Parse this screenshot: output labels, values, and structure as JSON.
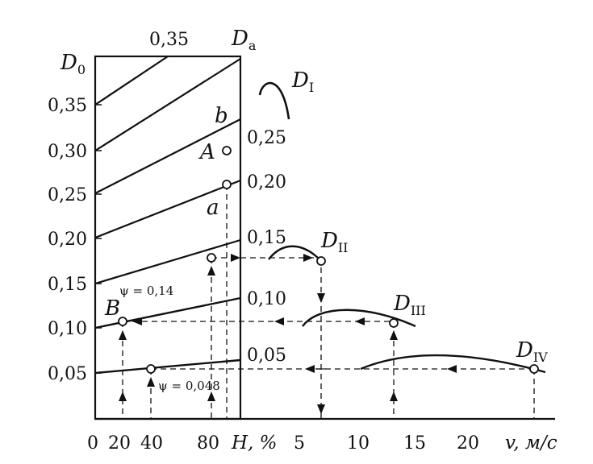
{
  "nomogram": {
    "left_axis": {
      "title": "D",
      "title_sub": "0",
      "ticks": [
        "0,35",
        "0,30",
        "0,25",
        "0,20",
        "0,15",
        "0,10",
        "0,05"
      ]
    },
    "top_scale": {
      "value": "0,35",
      "title": "D",
      "title_sub": "a"
    },
    "bottom_axis": {
      "ticks_h": [
        "0",
        "20",
        "40",
        "80"
      ],
      "h_label": "H, %",
      "ticks_v": [
        "5",
        "10",
        "15",
        "20"
      ],
      "v_label": "v, м/с"
    },
    "mid_scale": [
      "0,25",
      "0,20",
      "0,15",
      "0,10",
      "0,05"
    ],
    "curves": [
      {
        "name": "D",
        "sub": "I"
      },
      {
        "name": "D",
        "sub": "II"
      },
      {
        "name": "D",
        "sub": "III"
      },
      {
        "name": "D",
        "sub": "IV"
      }
    ],
    "points": {
      "A": "A",
      "B": "B",
      "a": "a",
      "b": "b"
    },
    "psi_upper": "ψ = 0,14",
    "psi_lower": "ψ = 0,048"
  }
}
